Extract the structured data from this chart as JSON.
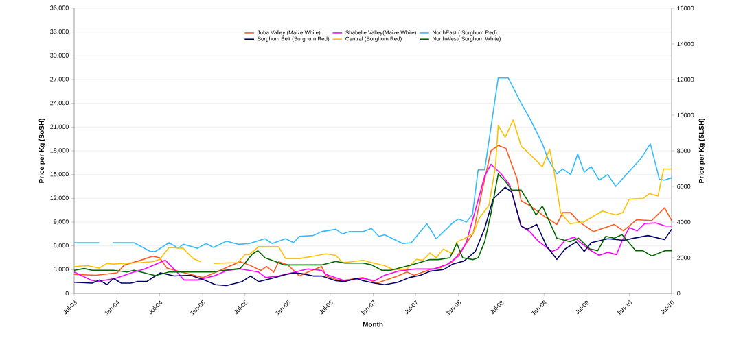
{
  "chart_data": {
    "type": "line",
    "xlabel": "Month",
    "ylabel": "Price per Kg (SoSH)",
    "y2label": "Price per Kg (SLSH)",
    "xlim": [
      "2003-07",
      "2010-07"
    ],
    "xticks": [
      {
        "value": "2003-07",
        "label": "Jul-03"
      },
      {
        "value": "2004-01",
        "label": "Jan-04"
      },
      {
        "value": "2004-07",
        "label": "Jul-04"
      },
      {
        "value": "2005-01",
        "label": "Jan-05"
      },
      {
        "value": "2005-07",
        "label": "Jul-05"
      },
      {
        "value": "2006-01",
        "label": "Jan-06"
      },
      {
        "value": "2006-07",
        "label": "Jul-06"
      },
      {
        "value": "2007-01",
        "label": "Jan-07"
      },
      {
        "value": "2007-07",
        "label": "Jul-07"
      },
      {
        "value": "2008-01",
        "label": "Jan-08"
      },
      {
        "value": "2008-07",
        "label": "Jul-08"
      },
      {
        "value": "2009-01",
        "label": "Jan-09"
      },
      {
        "value": "2009-07",
        "label": "Jul-09"
      },
      {
        "value": "2010-01",
        "label": "Jan-10"
      },
      {
        "value": "2010-07",
        "label": "Jul-10"
      }
    ],
    "ylim": [
      0,
      36000
    ],
    "yticks": [
      {
        "value": 0,
        "label": "0"
      },
      {
        "value": 3000,
        "label": "3,000"
      },
      {
        "value": 6000,
        "label": "6,000"
      },
      {
        "value": 9000,
        "label": "9,000"
      },
      {
        "value": 12000,
        "label": "12,000"
      },
      {
        "value": 15000,
        "label": "15,000"
      },
      {
        "value": 18000,
        "label": "18,000"
      },
      {
        "value": 21000,
        "label": "21,000"
      },
      {
        "value": 24000,
        "label": "24,000"
      },
      {
        "value": 27000,
        "label": "27,000"
      },
      {
        "value": 30000,
        "label": "30,000"
      },
      {
        "value": 33000,
        "label": "33,000"
      },
      {
        "value": 36000,
        "label": "36,000"
      }
    ],
    "y2lim": [
      0,
      16000
    ],
    "y2ticks": [
      0,
      2000,
      4000,
      6000,
      8000,
      10000,
      12000,
      14000,
      16000
    ],
    "grid": "y",
    "legend": "top",
    "marker": "none",
    "line_style": "solid",
    "series": [
      {
        "name": "Juba Valley (Maize White)",
        "color": "#ff5a1e",
        "x": [
          "2003-07",
          "2003-10",
          "2004-01",
          "2004-02",
          "2004-04",
          "2004-06",
          "2004-07",
          "2004-08",
          "2004-10",
          "2005-01",
          "2005-03",
          "2005-05",
          "2005-06-10",
          "2005-07-19",
          "2005-09-07",
          "2005-10",
          "2005-11",
          "2005-11-22",
          "2006-01",
          "2006-02-19",
          "2006-03-28",
          "2006-05-25",
          "2006-06-13",
          "2006-08-13",
          "2006-11-19",
          "2007-01-16",
          "2007-04-16",
          "2007-05-25",
          "2007-06-25",
          "2007-09",
          "2007-10-19",
          "2007-12-07",
          "2008-01-25",
          "2008-03-04",
          "2008-04-10",
          "2008-05-19",
          "2008-06-19",
          "2008-07-22",
          "2008-09-07",
          "2008-09-25",
          "2008-11",
          "2008-12-25",
          "2009-02-25",
          "2009-03-22",
          "2009-04-25",
          "2009-05-28",
          "2009-08",
          "2009-10-28",
          "2009-12-07",
          "2010-02",
          "2010-04-07",
          "2010-06",
          "2010-07"
        ],
        "values": [
          2400,
          2300,
          2600,
          3600,
          4100,
          4700,
          4500,
          3200,
          2700,
          2000,
          2700,
          3500,
          4000,
          3600,
          2900,
          3400,
          2700,
          4000,
          3600,
          2200,
          2700,
          3400,
          2200,
          1600,
          2000,
          1300,
          2200,
          2700,
          2300,
          3000,
          3300,
          4000,
          5900,
          7600,
          12800,
          18000,
          18700,
          18300,
          14500,
          11700,
          11100,
          9900,
          8700,
          10200,
          10200,
          9100,
          7800,
          8700,
          7900,
          9300,
          9200,
          10800,
          9200
        ]
      },
      {
        "name": "Shabelle Valley(Maize White)",
        "color": "#ff00ff",
        "x": [
          "2003-07",
          "2003-09-10",
          "2003-10-07",
          "2003-12-25",
          "2004-03-13",
          "2004-04-28",
          "2004-07-25",
          "2004-09-13",
          "2004-10-13",
          "2004-12-10",
          "2005-02-19",
          "2005-04-16",
          "2005-06-10",
          "2005-08-28",
          "2005-09-28",
          "2005-11-22",
          "2006-02",
          "2006-03-28",
          "2006-05-25",
          "2006-06-13",
          "2006-09",
          "2006-11-19",
          "2007-01-07",
          "2007-02-19",
          "2007-04-16",
          "2007-07",
          "2007-09-19",
          "2007-11-16",
          "2008-01-04",
          "2008-02-04",
          "2008-03-13",
          "2008-04-22",
          "2008-05-19",
          "2008-07",
          "2008-08-07",
          "2008-09-25",
          "2008-11",
          "2008-12-07",
          "2009-02-04",
          "2009-03",
          "2009-04",
          "2009-05-10",
          "2009-06-07",
          "2009-07-16",
          "2009-08-25",
          "2009-10",
          "2009-11-07",
          "2009-12",
          "2010-01",
          "2010-02-04",
          "2010-03-07",
          "2010-04-25",
          "2010-06-04",
          "2010-07"
        ],
        "values": [
          2700,
          1700,
          1500,
          1900,
          2700,
          3100,
          4200,
          2700,
          1700,
          1700,
          2200,
          2900,
          3100,
          2700,
          2000,
          2200,
          2700,
          3100,
          2900,
          2400,
          1600,
          1900,
          1600,
          2300,
          2800,
          3100,
          3100,
          3700,
          4800,
          6500,
          10500,
          14800,
          16300,
          15100,
          13700,
          8500,
          7800,
          6600,
          5300,
          5600,
          6700,
          7100,
          6400,
          5500,
          4800,
          5200,
          4900,
          6600,
          8300,
          7900,
          8800,
          8900,
          8500,
          8500
        ]
      },
      {
        "name": "NorthEast ( Sorghum Red)",
        "color": "#33bbff",
        "x": [
          "2003-07",
          "2003-10-16",
          "2003-11-16",
          "2003-12-13",
          "2004-03-13",
          "2004-05-22",
          "2004-06-13",
          "2004-08-10",
          "2004-09-19",
          "2004-10-10",
          "2004-12-10",
          "2005-01-16",
          "2005-02-16",
          "2005-04-13",
          "2005-06",
          "2005-07-19",
          "2005-09-25",
          "2005-10-25",
          "2005-12-22",
          "2006-01-25",
          "2006-02-19",
          "2006-04-19",
          "2006-05-25",
          "2006-07-25",
          "2006-08-22",
          "2006-09-22",
          "2006-11-19",
          "2006-12-25",
          "2007-01-25",
          "2007-02-19",
          "2007-05-07",
          "2007-06-13",
          "2007-08-19",
          "2007-09-28",
          "2007-12-07",
          "2008-01",
          "2008-02-04",
          "2008-03",
          "2008-03-25",
          "2008-04-22",
          "2008-06-19",
          "2008-08",
          "2008-09-25",
          "2008-11",
          "2008-12-25",
          "2009-01-19",
          "2009-02-25",
          "2009-03-22",
          "2009-04-25",
          "2009-05-25",
          "2009-06-22",
          "2009-07-22",
          "2009-08-25",
          "2009-10",
          "2009-11-04",
          "2009-12-22",
          "2010-02-19",
          "2010-04",
          "2010-05-10",
          "2010-06",
          "2010-07"
        ],
        "values": [
          6400,
          6400,
          null,
          6400,
          6400,
          5300,
          5300,
          6400,
          5700,
          6200,
          5700,
          6300,
          5800,
          6600,
          6200,
          6300,
          6900,
          6300,
          6900,
          6400,
          7200,
          7300,
          7800,
          8100,
          7500,
          7800,
          7800,
          8200,
          7200,
          7400,
          6300,
          6400,
          8800,
          6900,
          8900,
          9400,
          9000,
          10000,
          15600,
          15600,
          27200,
          27200,
          24000,
          22100,
          18900,
          16900,
          15100,
          15700,
          15000,
          17600,
          15300,
          16000,
          14300,
          15000,
          13500,
          15100,
          17000,
          18900,
          14400,
          14300,
          14600
        ]
      },
      {
        "name": "Sorghum Belt (Sorghum Red)",
        "color": "#000066",
        "x": [
          "2003-07",
          "2003-09-16",
          "2003-10-16",
          "2003-11-19",
          "2003-12-16",
          "2004-01-19",
          "2004-02-28",
          "2004-03-28",
          "2004-05-07",
          "2004-07-04",
          "2004-09",
          "2004-11-10",
          "2005-01-07",
          "2005-02-25",
          "2005-04-13",
          "2005-06-19",
          "2005-07-25",
          "2005-08-28",
          "2005-10-25",
          "2005-12-25",
          "2006-02",
          "2006-03",
          "2006-04-19",
          "2006-05-25",
          "2006-07-25",
          "2006-09",
          "2006-10-22",
          "2006-11-19",
          "2007-01-07",
          "2007-02-19",
          "2007-04-16",
          "2007-06-04",
          "2007-07-22",
          "2007-09",
          "2007-10-28",
          "2007-12-07",
          "2008-01-25",
          "2008-03-13",
          "2008-04-22",
          "2008-05-28",
          "2008-07-19",
          "2008-08-16",
          "2008-09-25",
          "2008-10-22",
          "2008-12",
          "2009-01-13",
          "2009-02-25",
          "2009-04",
          "2009-05-19",
          "2009-06-22",
          "2009-07-22",
          "2009-10",
          "2009-12-07",
          "2010-01-25",
          "2010-03-22",
          "2010-06",
          "2010-07"
        ],
        "values": [
          1400,
          1300,
          1700,
          1100,
          1900,
          1300,
          1300,
          1500,
          1500,
          2600,
          2200,
          2300,
          1700,
          1100,
          1000,
          1500,
          2200,
          1500,
          1900,
          2400,
          2600,
          2500,
          2200,
          2200,
          1600,
          1500,
          1900,
          1600,
          1300,
          1100,
          1400,
          2000,
          2300,
          2800,
          3000,
          3700,
          4100,
          5300,
          8200,
          11900,
          13400,
          12800,
          8500,
          8100,
          8700,
          5900,
          4300,
          5600,
          6500,
          5300,
          6400,
          6900,
          6700,
          7000,
          7300,
          6800,
          8100
        ]
      },
      {
        "name": "Central (Sorghum Red)",
        "color": "#ffc000",
        "x": [
          "2003-07",
          "2003-08-28",
          "2003-10-16",
          "2003-11-19",
          "2003-12-16",
          "2004-01-19",
          "2004-04-13",
          "2004-06",
          "2004-07",
          "2004-08-10",
          "2004-10-10",
          "2004-10-25",
          "2004-11-22",
          "2004-12-25",
          "2005-01-22",
          "2005-02-19",
          "2005-06",
          "2005-07",
          "2005-07-19",
          "2005-08-28",
          "2005-11-22",
          "2005-12-22",
          "2006-02-19",
          "2006-04-19",
          "2006-06-13",
          "2006-07-25",
          "2006-08-22",
          "2006-10",
          "2006-11-19",
          "2006-12-25",
          "2007-02-19",
          "2007-03-28",
          "2007-05-25",
          "2007-07-04",
          "2007-08",
          "2007-09",
          "2007-09-28",
          "2007-10-28",
          "2007-12-07",
          "2007-12-25",
          "2008-01-25",
          "2008-03-04",
          "2008-04",
          "2008-05-10",
          "2008-06-07",
          "2008-06-19",
          "2008-07-19",
          "2008-08-22",
          "2008-09-25",
          "2008-10-28",
          "2008-12-25",
          "2009-01-25",
          "2009-02-13",
          "2009-03-13",
          "2009-04-22",
          "2009-06-19",
          "2009-09-07",
          "2009-11-04",
          "2009-12-04",
          "2010-01",
          "2010-03",
          "2010-03-28",
          "2010-05-04",
          "2010-05-28",
          "2010-07"
        ],
        "values": [
          3400,
          3500,
          3200,
          3800,
          3700,
          3800,
          3900,
          4000,
          4300,
          5800,
          5700,
          5200,
          4400,
          4000,
          null,
          3800,
          3900,
          4900,
          4900,
          5900,
          5900,
          4400,
          4400,
          4700,
          5000,
          4800,
          3900,
          4000,
          4200,
          3900,
          3500,
          3000,
          3100,
          4300,
          4200,
          5100,
          4500,
          5600,
          5000,
          6500,
          6900,
          7600,
          9600,
          11100,
          16000,
          21200,
          19700,
          21900,
          18600,
          17700,
          16000,
          18200,
          15400,
          10200,
          8800,
          9000,
          10400,
          9900,
          10200,
          11900,
          12000,
          12600,
          12300,
          15700,
          15700
        ]
      },
      {
        "name": "NorthWest( Sorghum White)",
        "color": "#006600",
        "axis": "y2",
        "x": [
          "2003-07",
          "2003-08-13",
          "2003-09-16",
          "2003-12-16",
          "2004-02-13",
          "2004-03-13",
          "2004-05-13",
          "2004-06-13",
          "2004-08-10",
          "2004-10-10",
          "2004-12-10",
          "2005-02-10",
          "2005-04-07",
          "2005-06-10",
          "2005-07",
          "2005-08",
          "2005-08-25",
          "2005-09-25",
          "2005-11-07",
          "2005-12-16",
          "2006-02",
          "2006-05-25",
          "2006-07-25",
          "2006-09",
          "2006-11-19",
          "2006-12-25",
          "2007-02-07",
          "2007-03-16",
          "2007-04-16",
          "2007-06-13",
          "2007-09",
          "2007-10-07",
          "2007-11-25",
          "2007-12-25",
          "2008-01-19",
          "2008-03-04",
          "2008-03-25",
          "2008-04-22",
          "2008-05-19",
          "2008-06-19",
          "2008-07-19",
          "2008-08-16",
          "2008-09-25",
          "2008-10-28",
          "2008-11-28",
          "2008-12-25",
          "2009-02-25",
          "2009-04-22",
          "2009-05-28",
          "2009-07-16",
          "2009-08-19",
          "2009-09-22",
          "2009-10-28",
          "2009-12",
          "2010-01-28",
          "2010-02-28",
          "2010-04-07",
          "2010-06-04",
          "2010-07"
        ],
        "values": [
          1300,
          1400,
          1300,
          1300,
          1200,
          1300,
          1100,
          1000,
          1200,
          1200,
          1200,
          1200,
          1300,
          1400,
          1700,
          2200,
          2400,
          2000,
          1800,
          1600,
          1600,
          1600,
          1800,
          1700,
          1700,
          1600,
          1300,
          1300,
          1400,
          1600,
          1900,
          1900,
          2000,
          2800,
          2000,
          1900,
          2000,
          2900,
          4500,
          6700,
          6300,
          5800,
          5800,
          5100,
          4400,
          4900,
          3100,
          2900,
          3100,
          2500,
          2400,
          3200,
          3100,
          3300,
          2400,
          2400,
          2100,
          2400,
          2400
        ]
      }
    ]
  }
}
